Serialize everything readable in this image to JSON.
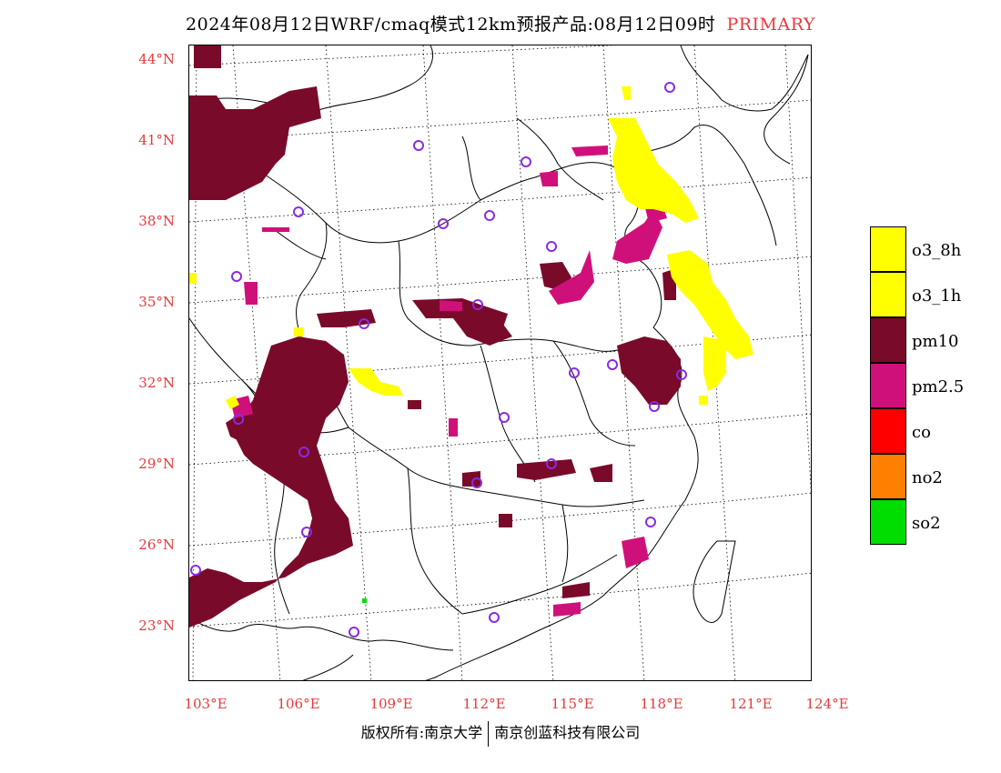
{
  "title": {
    "main": "2024年08月12日WRF/cmaq模式12km预报产品:08月12日09时",
    "tag": "PRIMARY"
  },
  "axes": {
    "lat_labels": [
      "44°N",
      "41°N",
      "38°N",
      "35°N",
      "32°N",
      "29°N",
      "26°N",
      "23°N"
    ],
    "lon_labels": [
      "103°E",
      "106°E",
      "109°E",
      "112°E",
      "115°E",
      "118°E",
      "121°E",
      "124°E"
    ]
  },
  "legend": [
    {
      "label": "o3_8h",
      "color": "#ffff00"
    },
    {
      "label": "o3_1h",
      "color": "#ffff00"
    },
    {
      "label": "pm10",
      "color": "#7a0a2a"
    },
    {
      "label": "pm2.5",
      "color": "#d0107a"
    },
    {
      "label": "co",
      "color": "#ff0000"
    },
    {
      "label": "no2",
      "color": "#ff8000"
    },
    {
      "label": "so2",
      "color": "#00dd00"
    }
  ],
  "footer": {
    "left": "版权所有:南京大学",
    "right": "南京创蓝科技有限公司"
  },
  "colors": {
    "lat_lon_label": "#e8393c",
    "station_marker": "#8a2be2"
  }
}
